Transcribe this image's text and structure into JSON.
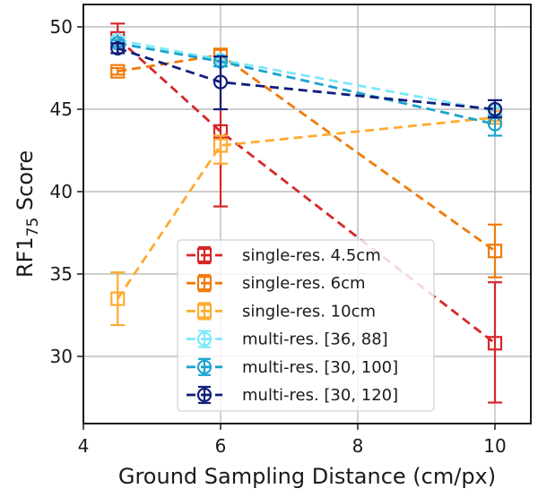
{
  "chart_data": {
    "type": "line",
    "title": "",
    "xlabel": "Ground Sampling Distance (cm/px)",
    "ylabel_main": "RF1",
    "ylabel_sub": "75",
    "ylabel_suffix": " Score",
    "xlim": [
      4,
      10.5
    ],
    "ylim": [
      26.0,
      51.4
    ],
    "xticks": [
      4,
      6,
      8,
      10
    ],
    "xtick_labels": [
      "4",
      "6",
      "8",
      "10"
    ],
    "yticks": [
      30,
      35,
      40,
      45,
      50
    ],
    "ytick_labels": [
      "30",
      "35",
      "40",
      "45",
      "50"
    ],
    "grid": true,
    "legend_position": "lower-center",
    "x": [
      4.5,
      6,
      10
    ],
    "series": [
      {
        "name": "single-res. 4.5cm",
        "color": "#d62728",
        "marker": "square",
        "values": [
          49.3,
          43.65,
          30.8
        ],
        "err_low": [
          48.4,
          39.1,
          27.2
        ],
        "err_high": [
          50.2,
          48.2,
          34.5
        ]
      },
      {
        "name": "single-res. 6cm",
        "color": "#f07b0b",
        "marker": "square",
        "values": [
          47.3,
          48.3,
          36.4
        ],
        "err_low": [
          47.1,
          48.0,
          34.8
        ],
        "err_high": [
          47.5,
          48.6,
          38.0
        ]
      },
      {
        "name": "single-res. 10cm",
        "color": "#fdab2f",
        "marker": "square",
        "values": [
          33.5,
          42.8,
          44.5
        ],
        "err_low": [
          31.9,
          41.7,
          44.3
        ],
        "err_high": [
          35.1,
          43.4,
          44.7
        ]
      },
      {
        "name": "multi-res. [36, 88]",
        "color": "#7de8fb",
        "marker": "circle",
        "values": [
          49.2,
          48.0,
          44.9
        ],
        "err_low": [
          49.0,
          47.8,
          44.7
        ],
        "err_high": [
          49.4,
          48.2,
          45.1
        ]
      },
      {
        "name": "multi-res. [30, 100]",
        "color": "#1aa3cf",
        "marker": "circle",
        "values": [
          49.0,
          47.9,
          44.1
        ],
        "err_low": [
          48.8,
          47.6,
          43.4
        ],
        "err_high": [
          49.2,
          48.2,
          44.6
        ]
      },
      {
        "name": "multi-res. [30, 120]",
        "color": "#111e7c",
        "marker": "circle",
        "values": [
          48.7,
          46.65,
          45.0
        ],
        "err_low": [
          48.4,
          45.0,
          44.5
        ],
        "err_high": [
          49.0,
          48.2,
          45.55
        ]
      }
    ]
  }
}
